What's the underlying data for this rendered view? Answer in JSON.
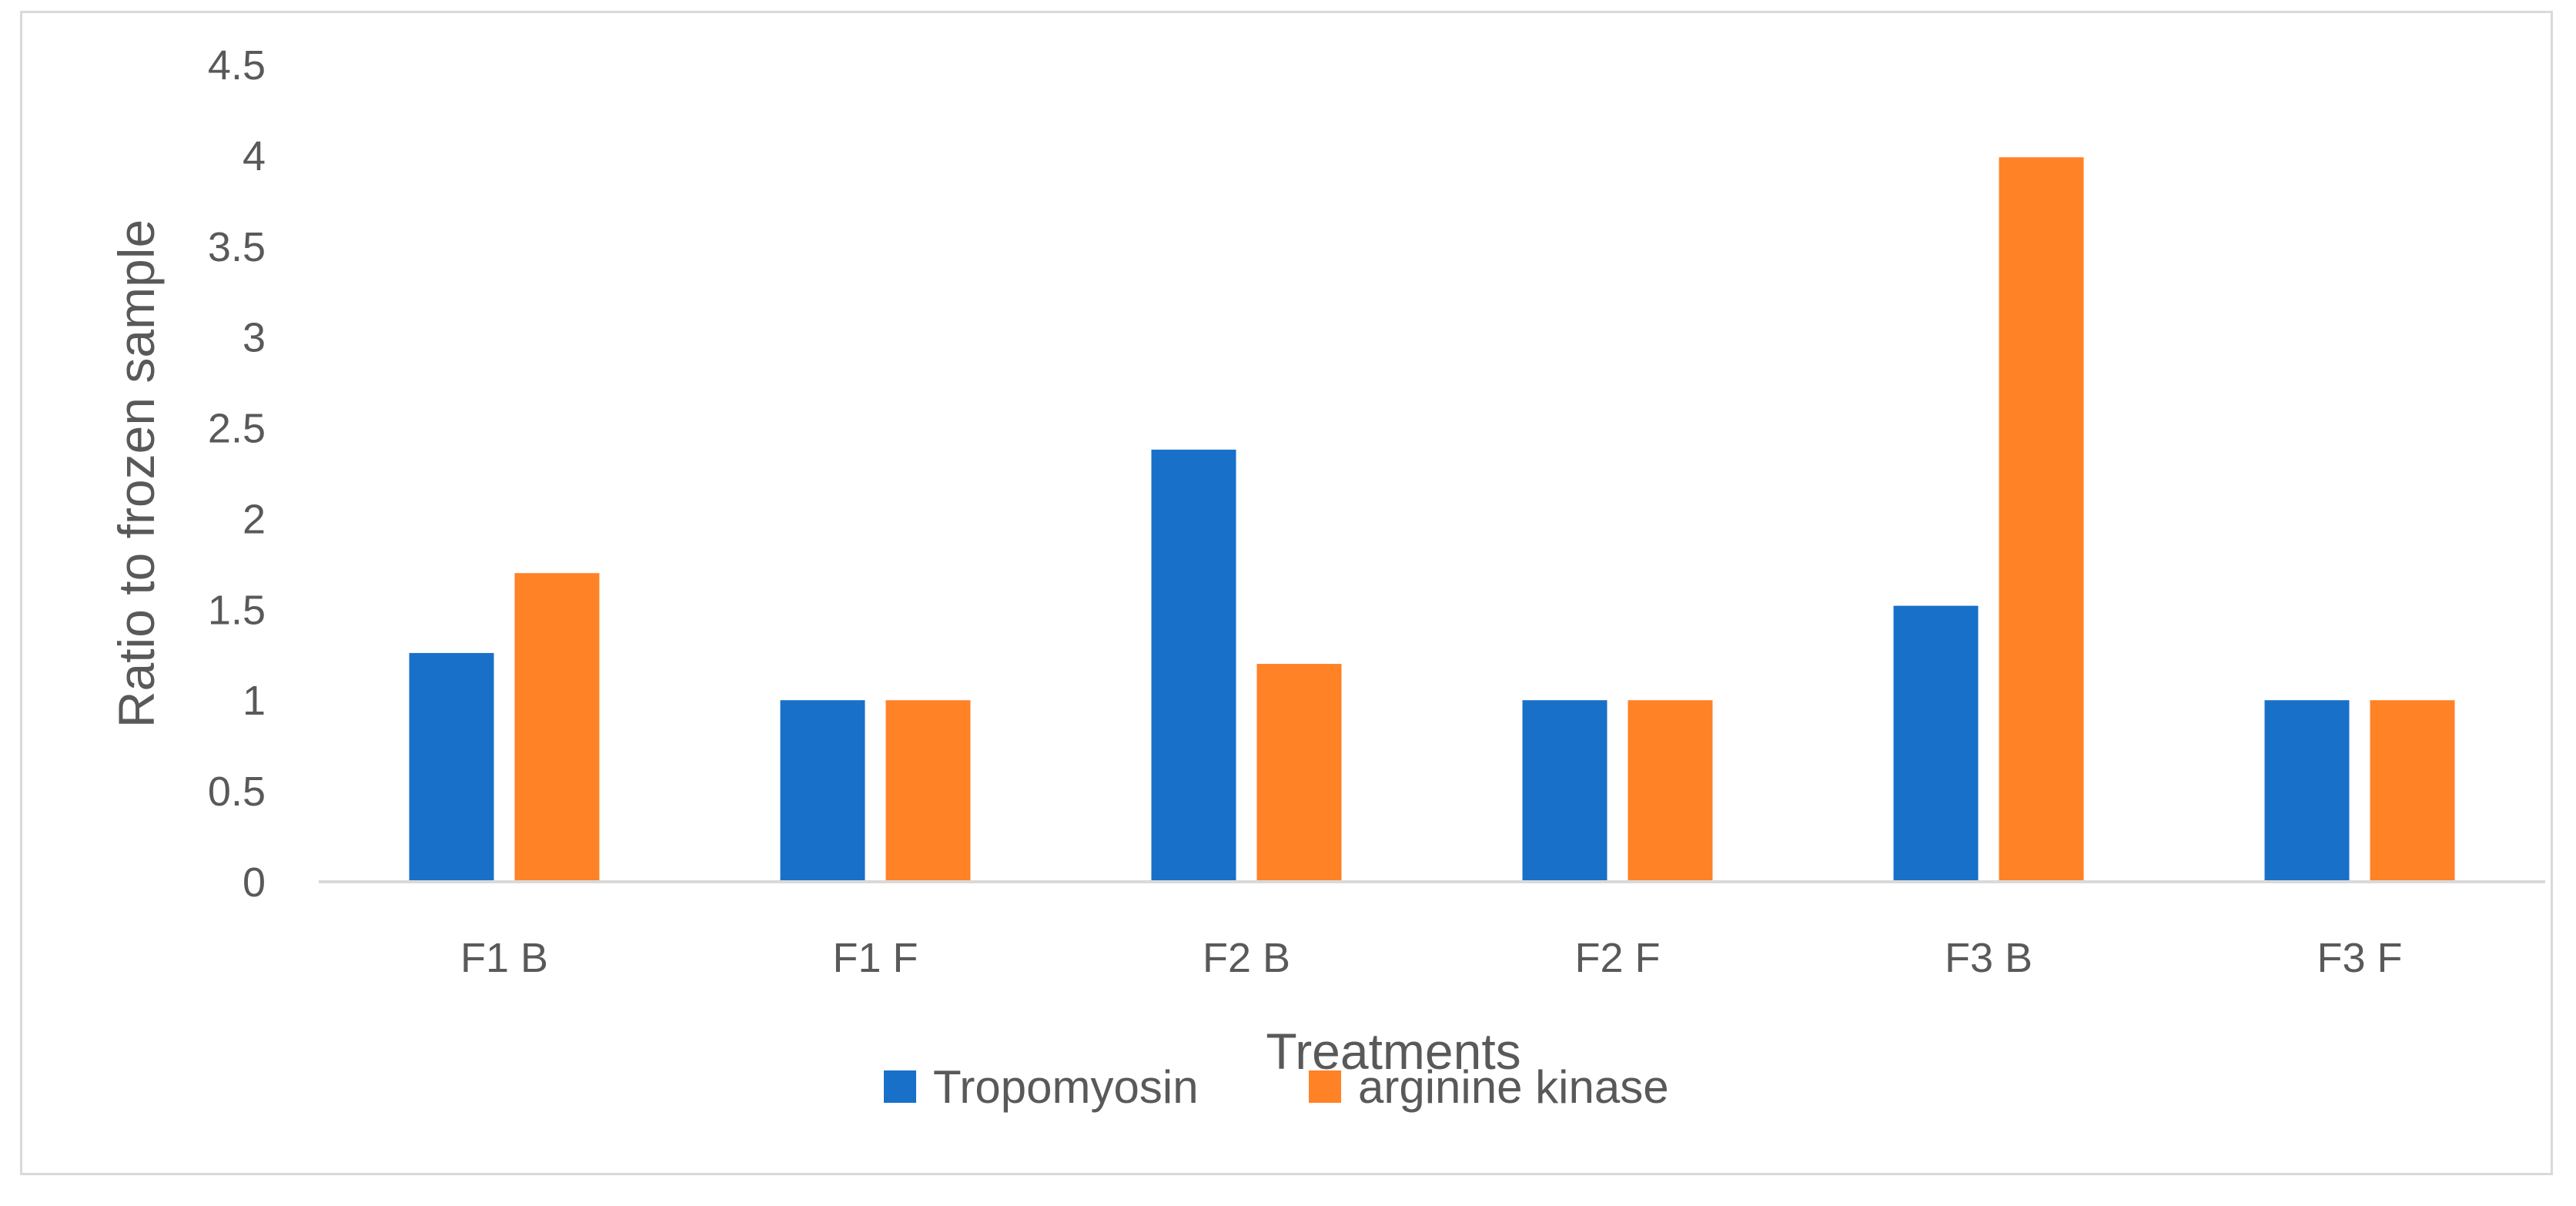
{
  "chart_data": {
    "type": "bar",
    "title": "",
    "xlabel": "Treatments",
    "ylabel": "Ratio to frozen sample",
    "categories": [
      "F1 B",
      "F1 F",
      "F2 B",
      "F2 F",
      "F3 B",
      "F3 F"
    ],
    "series": [
      {
        "name": "Tropomyosin",
        "color": "#1870c8",
        "values": [
          1.26,
          1.0,
          2.38,
          1.0,
          1.52,
          1.0
        ]
      },
      {
        "name": "arginine kinase",
        "color": "#ff8226",
        "values": [
          1.7,
          1.0,
          1.2,
          1.0,
          3.99,
          1.0
        ]
      }
    ],
    "ylim": [
      0,
      4.5
    ],
    "yticks": [
      "0",
      "0.5",
      "1",
      "1.5",
      "2",
      "2.5",
      "3",
      "3.5",
      "4",
      "4.5"
    ],
    "grid": false,
    "legend_position": "bottom",
    "axis_color": "#d9d9d9",
    "text_color": "#595959"
  }
}
